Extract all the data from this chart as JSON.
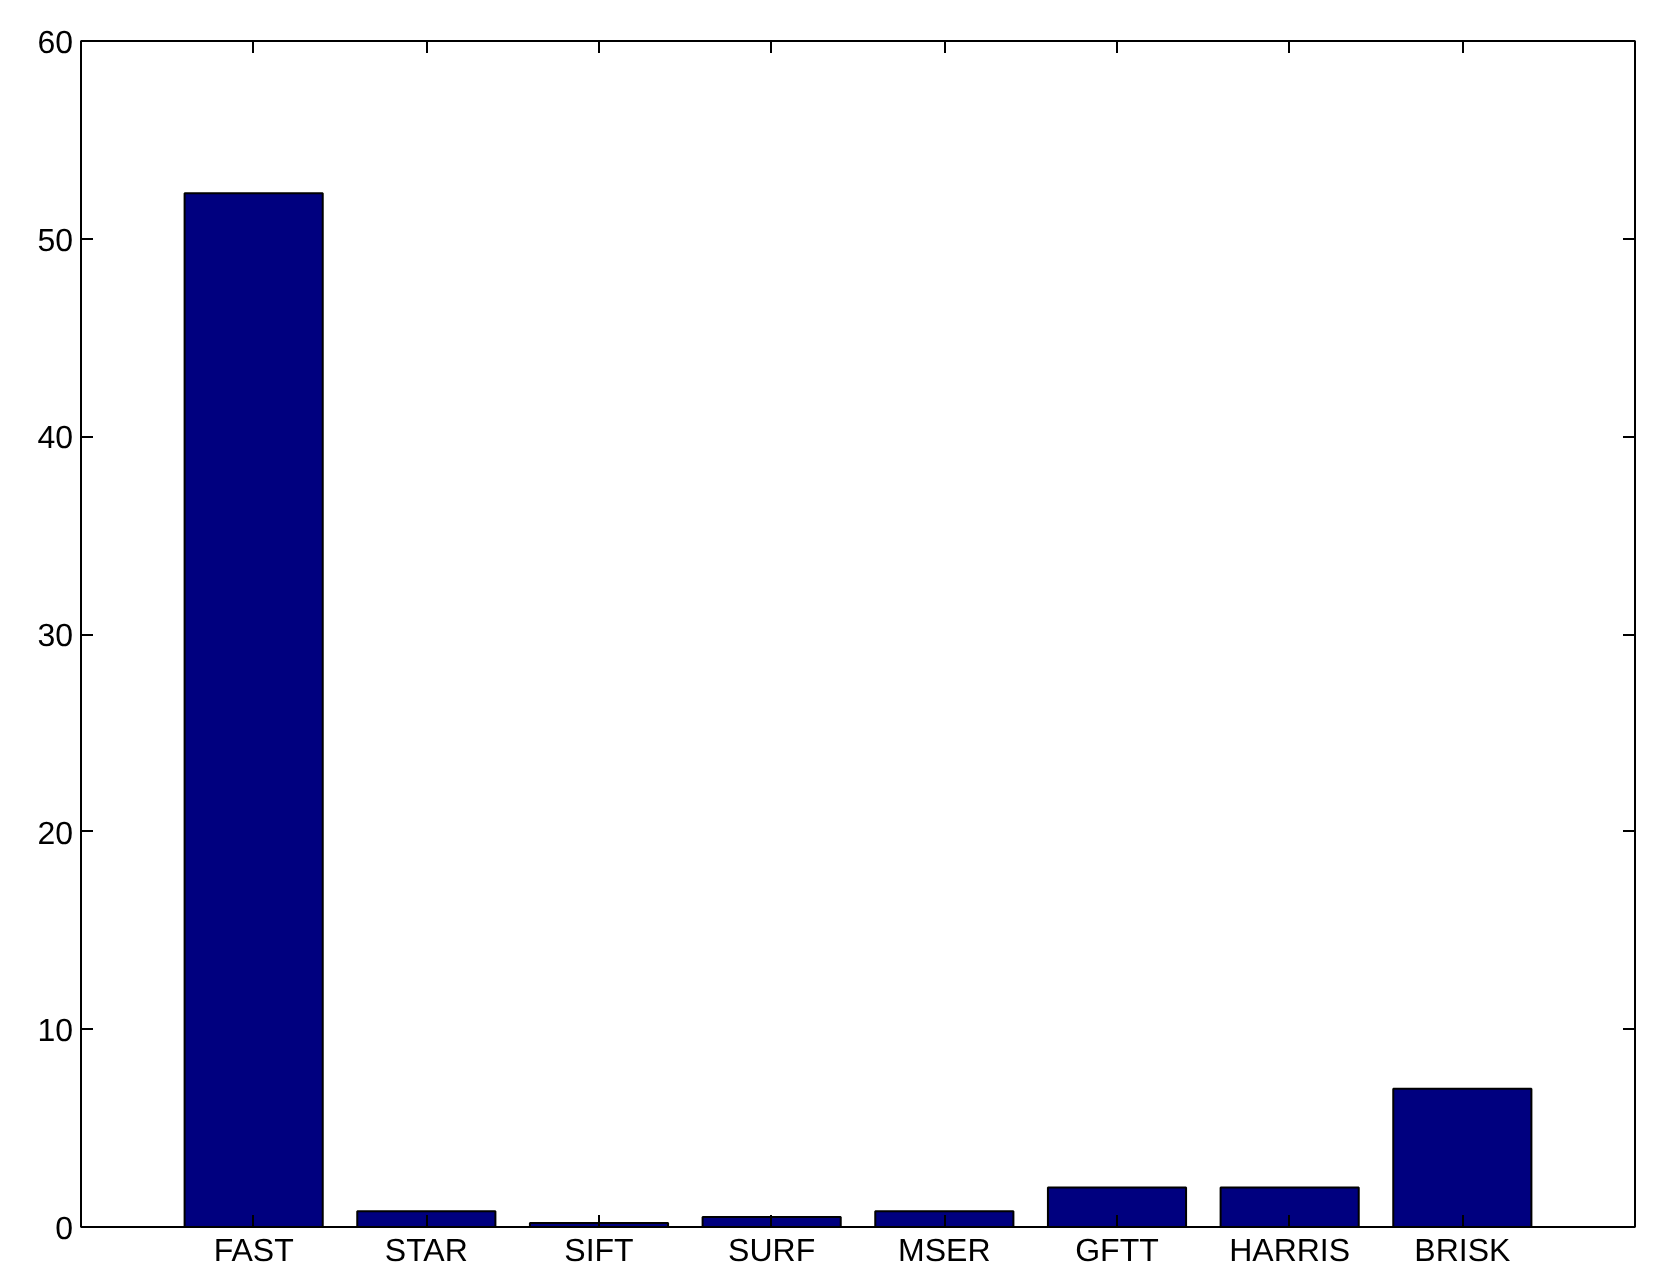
{
  "chart_data": {
    "type": "bar",
    "categories": [
      "FAST",
      "STAR",
      "SIFT",
      "SURF",
      "MSER",
      "GFTT",
      "HARRIS",
      "BRISK"
    ],
    "values": [
      52.3,
      0.8,
      0.2,
      0.5,
      0.8,
      2.0,
      2.0,
      7.0
    ],
    "color": "#00007f",
    "ylim": [
      0,
      60
    ],
    "yticks": [
      0,
      10,
      20,
      30,
      40,
      50,
      60
    ]
  }
}
